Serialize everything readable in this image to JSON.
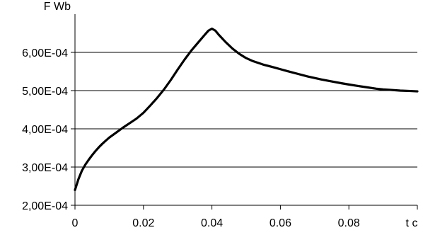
{
  "chart_data": {
    "type": "line",
    "title": "",
    "xlabel": "t c",
    "ylabel": "F Wb",
    "xlim": [
      0,
      0.1
    ],
    "ylim": [
      0.0002,
      0.0007
    ],
    "grid": true,
    "x_ticks": [
      0,
      0.02,
      0.04,
      0.06,
      0.08
    ],
    "x_tick_labels": [
      "0",
      "0.02",
      "0.04",
      "0.06",
      "0.08"
    ],
    "y_ticks": [
      0.0002,
      0.0003,
      0.0004,
      0.0005,
      0.0006
    ],
    "y_tick_labels": [
      "2,00E-04",
      "3,00E-04",
      "4,00E-04",
      "5,00E-04",
      "6,00E-04"
    ],
    "series": [
      {
        "x": [
          0.0,
          0.001,
          0.002,
          0.003,
          0.004,
          0.005,
          0.006,
          0.007,
          0.008,
          0.009,
          0.01,
          0.012,
          0.014,
          0.016,
          0.018,
          0.02,
          0.022,
          0.024,
          0.026,
          0.028,
          0.03,
          0.032,
          0.034,
          0.036,
          0.038,
          0.039,
          0.04,
          0.041,
          0.042,
          0.044,
          0.046,
          0.048,
          0.05,
          0.052,
          0.055,
          0.058,
          0.06,
          0.062,
          0.065,
          0.068,
          0.07,
          0.072,
          0.075,
          0.078,
          0.08,
          0.082,
          0.085,
          0.088,
          0.09,
          0.092,
          0.095,
          0.098,
          0.1
        ],
        "values": [
          0.00024,
          0.000268,
          0.00029,
          0.000306,
          0.000319,
          0.000331,
          0.000342,
          0.000352,
          0.000361,
          0.000369,
          0.000377,
          0.00039,
          0.000403,
          0.000415,
          0.000427,
          0.000442,
          0.000461,
          0.000481,
          0.000503,
          0.000528,
          0.000555,
          0.000581,
          0.000605,
          0.000626,
          0.000647,
          0.000657,
          0.000662,
          0.000657,
          0.000646,
          0.000627,
          0.00061,
          0.000596,
          0.000585,
          0.000577,
          0.000568,
          0.000561,
          0.000556,
          0.000551,
          0.000544,
          0.000537,
          0.000533,
          0.000529,
          0.000524,
          0.000519,
          0.000516,
          0.000513,
          0.000509,
          0.000505,
          0.000503,
          0.000502,
          0.0005,
          0.000499,
          0.000498
        ]
      }
    ]
  }
}
